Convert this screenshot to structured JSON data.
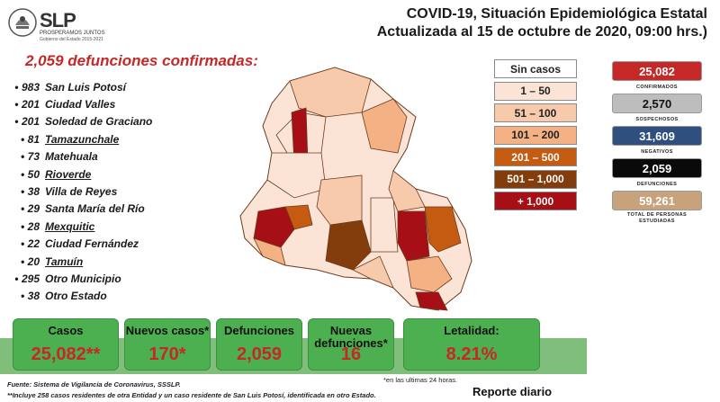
{
  "logo": {
    "name": "SLP",
    "tagline": "PROSPERAMOS JUNTOS",
    "subtitle": "Gobierno del Estado 2015-2021"
  },
  "header": {
    "line1": "COVID-19, Situación Epidemiológica Estatal",
    "line2": "Actualizada al 15 de octubre de 2020, 09:00 hrs.)"
  },
  "deaths_heading": "2,059 defunciones confirmadas:",
  "municipalities": [
    {
      "count": "983",
      "name": "San Luis Potosí",
      "underline": false
    },
    {
      "count": "201",
      "name": "Ciudad Valles",
      "underline": false
    },
    {
      "count": "201",
      "name": "Soledad de Graciano",
      "underline": false
    },
    {
      "count": "81",
      "name": "Tamazunchale",
      "underline": true
    },
    {
      "count": "73",
      "name": "Matehuala",
      "underline": false
    },
    {
      "count": "50",
      "name": "Rioverde",
      "underline": true
    },
    {
      "count": "38",
      "name": "Villa de Reyes",
      "underline": false
    },
    {
      "count": "29",
      "name": "Santa María del Río",
      "underline": false
    },
    {
      "count": "28",
      "name": "Mexquitic",
      "underline": true
    },
    {
      "count": "22",
      "name": "Ciudad Fernández",
      "underline": false
    },
    {
      "count": "20",
      "name": "Tamuín",
      "underline": true
    },
    {
      "count": "295",
      "name": "Otro Municipio",
      "underline": false
    },
    {
      "count": "38",
      "name": "Otro Estado",
      "underline": false
    }
  ],
  "legend": [
    {
      "label": "Sin casos",
      "color": "#ffffff",
      "text_color": "#222222"
    },
    {
      "label": "1 – 50",
      "color": "#fbe4d5",
      "text_color": "#222222"
    },
    {
      "label": "51 – 100",
      "color": "#f7caac",
      "text_color": "#222222"
    },
    {
      "label": "101 – 200",
      "color": "#f4b183",
      "text_color": "#222222"
    },
    {
      "label": "201 – 500",
      "color": "#c55a11",
      "text_color": "#ffffff"
    },
    {
      "label": "501 – 1,000",
      "color": "#833c0b",
      "text_color": "#ffffff"
    },
    {
      "label": "+ 1,000",
      "color": "#a50f15",
      "text_color": "#ffffff"
    }
  ],
  "stats": [
    {
      "value": "25,082",
      "label": "CONFIRMADOS",
      "color": "#c62828",
      "text_color": "#ffffff"
    },
    {
      "value": "2,570",
      "label": "SOSPECHOSOS",
      "color": "#bdbdbd",
      "text_color": "#111111"
    },
    {
      "value": "31,609",
      "label": "NEGATIVOS",
      "color": "#2f4f7f",
      "text_color": "#ffffff"
    },
    {
      "value": "2,059",
      "label": "DEFUNCIONES",
      "color": "#0a0a0a",
      "text_color": "#ffffff"
    },
    {
      "value": "59,261",
      "label": "TOTAL DE PERSONAS ESTUDIADAS",
      "color": "#c8a27a",
      "text_color": "#ffffff"
    }
  ],
  "summary": [
    {
      "label": "Casos",
      "value": "25,082**"
    },
    {
      "label": "Nuevos casos*",
      "value": "170*"
    },
    {
      "label": "Defunciones",
      "value": "2,059"
    },
    {
      "label": "Nuevas defunciones*",
      "value": "16"
    },
    {
      "label": "Letalidad:",
      "value": "8.21%"
    }
  ],
  "footnotes": {
    "last24": "*en las ultimas 24 horas.",
    "source": "Fuente: Sistema de Vigilancia de Coronavirus, SSSLP.",
    "includes": "**Incluye 258 casos residentes de otra Entidad y un caso residente de San Luis Potosí, identificada en otro Estado.",
    "report": "Reporte diario"
  }
}
